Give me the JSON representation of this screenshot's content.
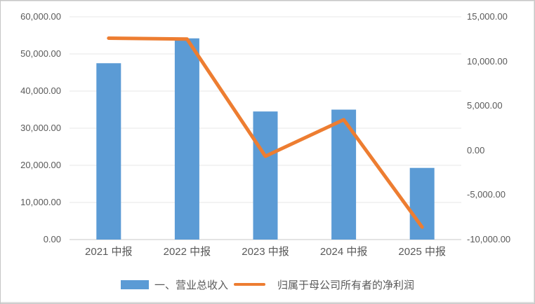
{
  "chart_data": {
    "type": "combo",
    "title": "",
    "categories": [
      "2021 中报",
      "2022 中报",
      "2023 中报",
      "2024 中报",
      "2025 中报"
    ],
    "series": [
      {
        "name": "一、营业总收入",
        "type": "bar",
        "axis": "left",
        "color": "#5B9BD5",
        "values": [
          47500,
          54200,
          34500,
          35000,
          19300
        ]
      },
      {
        "name": "归属于母公司所有者的净利润",
        "type": "line",
        "axis": "right",
        "color": "#ED7D31",
        "values": [
          12600,
          12500,
          -650,
          3450,
          -8600
        ]
      }
    ],
    "left_axis": {
      "min": 0,
      "max": 60000,
      "tick_step": 10000,
      "tick_labels_top_to_bottom": [
        "60,000.00",
        "50,000.00",
        "40,000.00",
        "30,000.00",
        "20,000.00",
        "10,000.00",
        "0.00"
      ]
    },
    "right_axis": {
      "min": -10000,
      "max": 15000,
      "tick_step": 5000,
      "tick_labels_top_to_bottom": [
        "15,000.00",
        "10,000.00",
        "5,000.00",
        "0.00",
        "-5,000.00",
        "-10,000.00"
      ]
    },
    "grid": true,
    "legend_position": "bottom"
  },
  "colors": {
    "bar": "#5B9BD5",
    "line": "#ED7D31",
    "axis_text": "#595959",
    "gridline": "#E7E7E7",
    "axis_line": "#C9C9C9"
  }
}
